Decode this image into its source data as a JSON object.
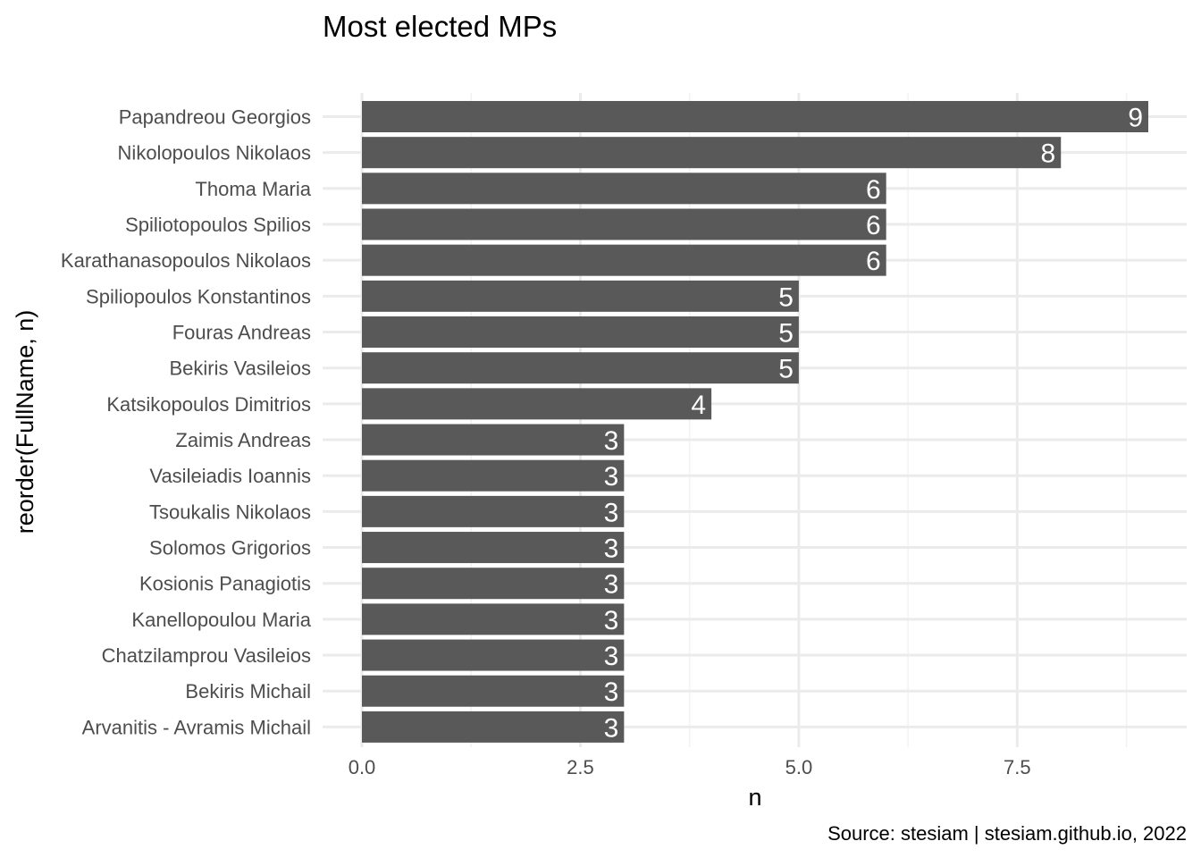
{
  "chart_data": {
    "type": "bar",
    "orientation": "horizontal",
    "title": "Most elected MPs",
    "xlabel": "n",
    "ylabel": "reorder(FullName, n)",
    "caption": "Source: stesiam | stesiam.github.io, 2022",
    "categories": [
      "Papandreou Georgios",
      "Nikolopoulos Nikolaos",
      "Thoma Maria",
      "Spiliotopoulos Spilios",
      "Karathanasopoulos Nikolaos",
      "Spiliopoulos Konstantinos",
      "Fouras Andreas",
      "Bekiris Vasileios",
      "Katsikopoulos Dimitrios",
      "Zaimis Andreas",
      "Vasileiadis Ioannis",
      "Tsoukalis Nikolaos",
      "Solomos Grigorios",
      "Kosionis Panagiotis",
      "Kanellopoulou Maria",
      "Chatzilamprou Vasileios",
      "Bekiris Michail",
      "Arvanitis - Avramis Michail"
    ],
    "values": [
      9,
      8,
      6,
      6,
      6,
      5,
      5,
      5,
      4,
      3,
      3,
      3,
      3,
      3,
      3,
      3,
      3,
      3
    ],
    "x_ticks": [
      0,
      2.5,
      5,
      7.5
    ],
    "x_tick_labels": [
      "0.0",
      "2.5",
      "5.0",
      "7.5"
    ],
    "x_minor_ticks": [
      1.25,
      3.75,
      6.25,
      8.75
    ],
    "xlim": [
      0,
      9
    ],
    "grid": true,
    "legend": "none",
    "bar_color": "#595959",
    "label_color": "#ffffff"
  }
}
